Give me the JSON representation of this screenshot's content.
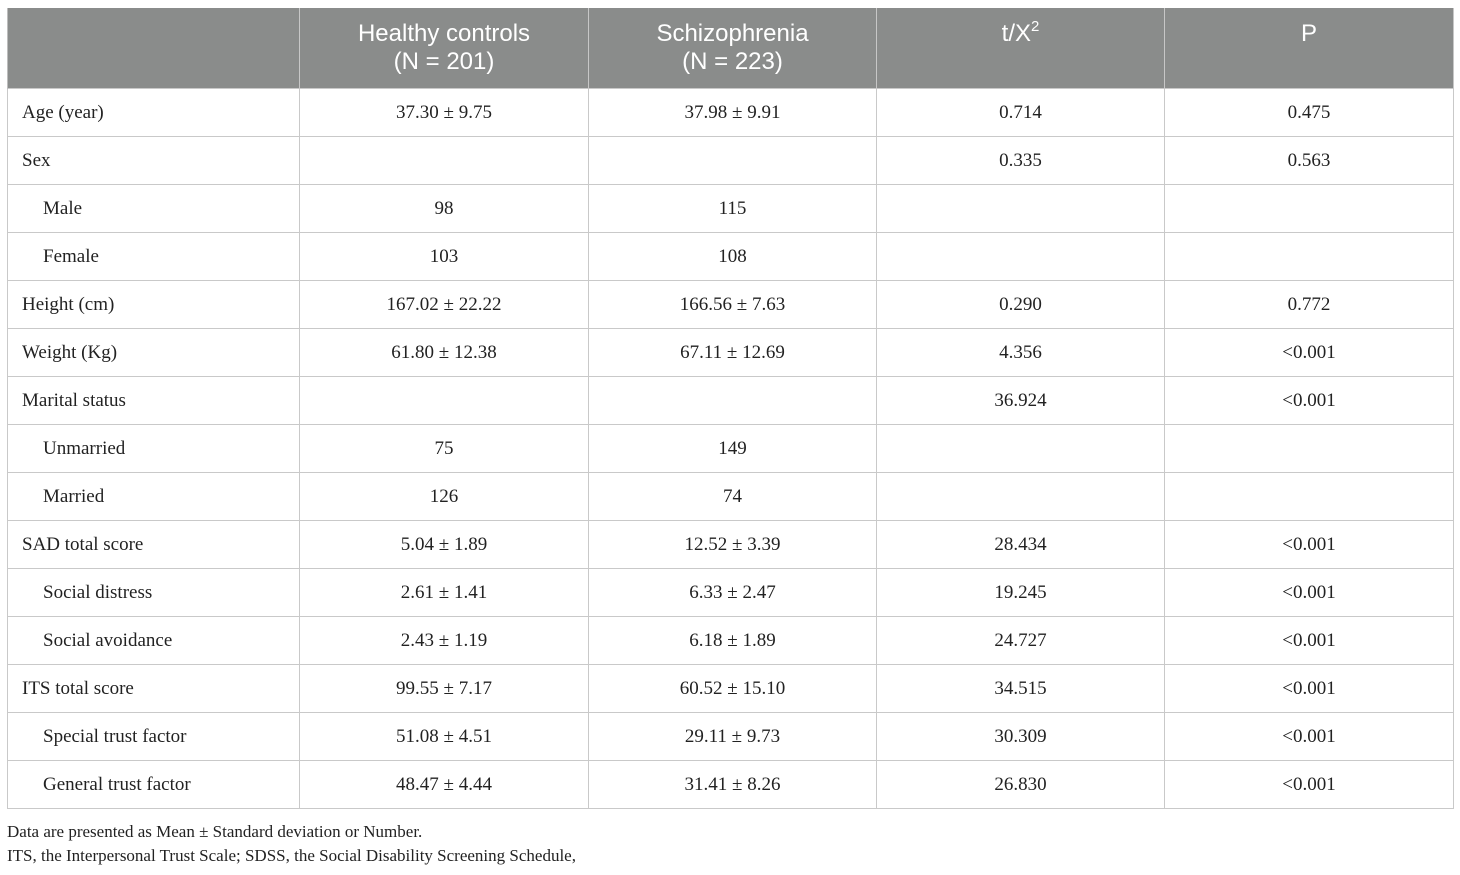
{
  "table": {
    "headers": [
      {
        "line1": "",
        "line2": ""
      },
      {
        "line1": "Healthy controls",
        "line2": "(N = 201)"
      },
      {
        "line1": "Schizophrenia",
        "line2": "(N = 223)"
      },
      {
        "line1": "t/X",
        "sup": "2"
      },
      {
        "line1": "P"
      }
    ],
    "rows": [
      {
        "label": "Age (year)",
        "indent": false,
        "hc": "37.30 ± 9.75",
        "sz": "37.98 ± 9.91",
        "stat": "0.714",
        "p": "0.475"
      },
      {
        "label": "Sex",
        "indent": false,
        "hc": "",
        "sz": "",
        "stat": "0.335",
        "p": "0.563"
      },
      {
        "label": "Male",
        "indent": true,
        "hc": "98",
        "sz": "115",
        "stat": "",
        "p": ""
      },
      {
        "label": "Female",
        "indent": true,
        "hc": "103",
        "sz": "108",
        "stat": "",
        "p": ""
      },
      {
        "label": "Height (cm)",
        "indent": false,
        "hc": "167.02 ± 22.22",
        "sz": "166.56 ± 7.63",
        "stat": "0.290",
        "p": "0.772"
      },
      {
        "label": "Weight (Kg)",
        "indent": false,
        "hc": "61.80 ± 12.38",
        "sz": "67.11 ± 12.69",
        "stat": "4.356",
        "p": "<0.001"
      },
      {
        "label": "Marital status",
        "indent": false,
        "hc": "",
        "sz": "",
        "stat": "36.924",
        "p": "<0.001"
      },
      {
        "label": "Unmarried",
        "indent": true,
        "hc": "75",
        "sz": "149",
        "stat": "",
        "p": ""
      },
      {
        "label": "Married",
        "indent": true,
        "hc": "126",
        "sz": "74",
        "stat": "",
        "p": ""
      },
      {
        "label": "SAD total score",
        "indent": false,
        "hc": "5.04 ± 1.89",
        "sz": "12.52 ± 3.39",
        "stat": "28.434",
        "p": "<0.001"
      },
      {
        "label": "Social distress",
        "indent": true,
        "hc": "2.61 ± 1.41",
        "sz": "6.33 ± 2.47",
        "stat": "19.245",
        "p": "<0.001"
      },
      {
        "label": "Social avoidance",
        "indent": true,
        "hc": "2.43 ± 1.19",
        "sz": "6.18 ± 1.89",
        "stat": "24.727",
        "p": "<0.001"
      },
      {
        "label": "ITS total score",
        "indent": false,
        "hc": "99.55 ± 7.17",
        "sz": "60.52 ± 15.10",
        "stat": "34.515",
        "p": "<0.001"
      },
      {
        "label": "Special trust factor",
        "indent": true,
        "hc": "51.08 ± 4.51",
        "sz": "29.11 ± 9.73",
        "stat": "30.309",
        "p": "<0.001"
      },
      {
        "label": "General trust factor",
        "indent": true,
        "hc": "48.47 ± 4.44",
        "sz": "31.41 ± 8.26",
        "stat": "26.830",
        "p": "<0.001"
      }
    ]
  },
  "notes": [
    "Data are presented as Mean ± Standard deviation or Number.",
    "ITS, the Interpersonal Trust Scale; SDSS, the Social Disability Screening Schedule,"
  ]
}
